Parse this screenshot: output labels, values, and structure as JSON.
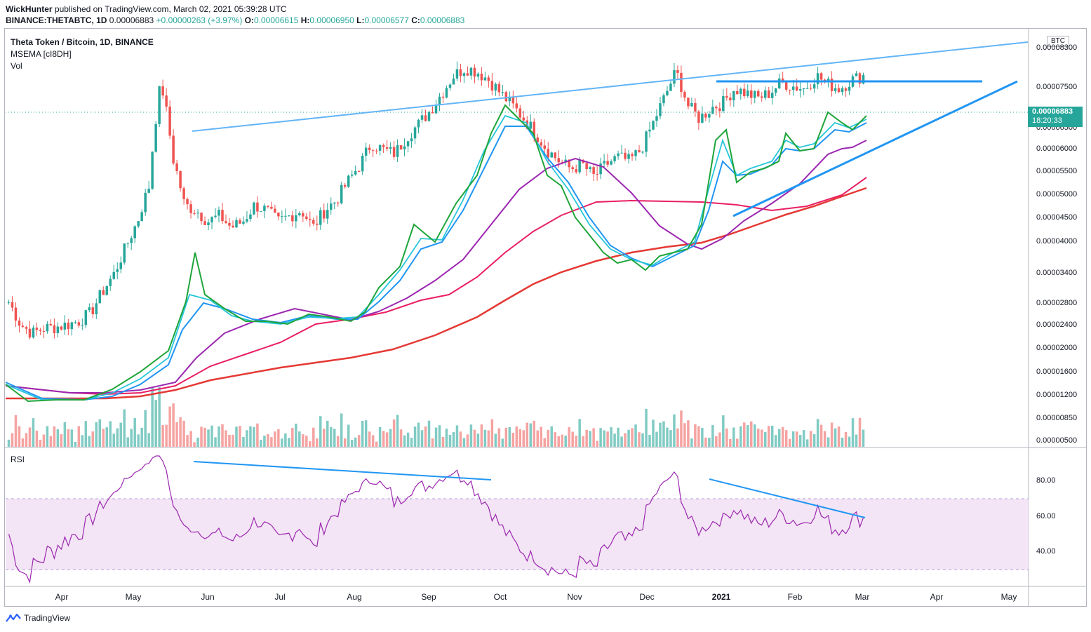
{
  "header": {
    "author": "WickHunter",
    "published_text": "published on TradingView.com, March 02, 2021 05:39:28 UTC",
    "symbol_line": "BINANCE:THETABTC, 1D",
    "last_value": "0.00006883",
    "change": "+0.00000263 (+3.97%)",
    "o_label": "O:",
    "o_value": "0.00006615",
    "h_label": "H:",
    "h_value": "0.00006950",
    "l_label": "L:",
    "l_value": "0.00006577",
    "c_label": "C:",
    "c_value": "0.00006883"
  },
  "legend": {
    "title": "Theta Token / Bitcoin, 1D, BINANCE",
    "indicator": "MSEMA [cI8DH]",
    "volume": "Vol",
    "rsi": "RSI"
  },
  "axis_badge": "BTC",
  "price_tag": {
    "price": "0.00006883",
    "countdown": "18:20:33"
  },
  "brand": "TradingView",
  "colors": {
    "up": "#26a69a",
    "down": "#ef5350",
    "ema_fast": "#1fa53b",
    "ema_mid": "#26c6da",
    "ema_blue": "#2196f3",
    "ema_purple": "#9c27b0",
    "ema_pink": "#e91e63",
    "ema_red": "#e53935",
    "trend": "#2196f3",
    "rsi": "#9c27b0",
    "rsi_band": "#f3e5f5"
  },
  "chart_data": {
    "type": "candlestick",
    "price_ticks": [
      "0.00008300",
      "0.00007500",
      "0.00006500",
      "0.00006000",
      "0.00005500",
      "0.00005000",
      "0.00004500",
      "0.00004000",
      "0.00003400",
      "0.00002800",
      "0.00002400",
      "0.00002000",
      "0.00001600",
      "0.00001200",
      "0.00000850",
      "0.00000500"
    ],
    "rsi_ticks": [
      "80.00",
      "60.00",
      "40.00"
    ],
    "x_ticks": [
      "Apr",
      "May",
      "Jun",
      "Jul",
      "Aug",
      "Sep",
      "Oct",
      "Nov",
      "Dec",
      "2021",
      "Feb",
      "Mar",
      "Apr",
      "May"
    ],
    "rsi_band": [
      30,
      70
    ],
    "close_path": [
      1.35e-05,
      1.15e-05,
      1.08e-05,
      1.12e-05,
      1.13e-05,
      1.15e-05,
      1.18e-05,
      1.25e-05,
      1.45e-05,
      1.65e-05,
      2e-05,
      2.4e-05,
      3.1e-05,
      6.5e-05,
      3.8e-05,
      2.7e-05,
      2.6e-05,
      2.4e-05,
      2.5e-05,
      2.3e-05,
      2.4e-05,
      2.7e-05,
      2.6e-05,
      2.4e-05,
      2.5e-05,
      2.6e-05,
      2.3e-05,
      2.6e-05,
      2.8e-05,
      3.2e-05,
      3.6e-05,
      4.2e-05,
      4e-05,
      3.9e-05,
      4.4e-05,
      4.8e-05,
      5.3e-05,
      6e-05,
      6.8e-05,
      7.2e-05,
      7e-05,
      6.6e-05,
      6e-05,
      5.5e-05,
      5e-05,
      4.5e-05,
      4e-05,
      3.7e-05,
      3.5e-05,
      3.6e-05,
      3.3e-05,
      3.6e-05,
      3.8e-05,
      3.7e-05,
      4e-05,
      4.8e-05,
      5.8e-05,
      7e-05,
      5.5e-05,
      5e-05,
      5.4e-05,
      5.6e-05,
      6.2e-05,
      6e-05,
      5.8e-05,
      6e-05,
      6.5e-05,
      6.3e-05,
      6.2e-05,
      6.8e-05,
      6.4e-05,
      6.2e-05,
      6.6e-05,
      6.8e-05
    ]
  }
}
